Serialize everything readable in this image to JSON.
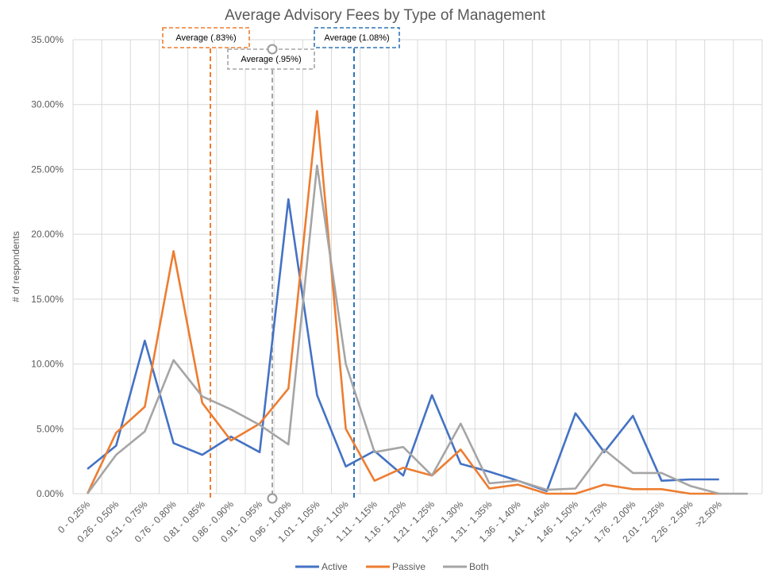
{
  "chart_data": {
    "type": "line",
    "title": "Average Advisory Fees by Type of Management",
    "xlabel": "",
    "ylabel": "# of respondents",
    "ylim": [
      0,
      35
    ],
    "yticks": [
      "0.00%",
      "5.00%",
      "10.00%",
      "15.00%",
      "20.00%",
      "25.00%",
      "30.00%",
      "35.00%"
    ],
    "grid": true,
    "legend": "bottom",
    "categories": [
      "0 - 0.25%",
      "0.26 - 0.50%",
      "0.51 - 0.75%",
      "0.76 - 0.80%",
      "0.81 - 0.85%",
      "0.86 - 0.90%",
      "0.91 - 0.95%",
      "0.96 - 1.00%",
      "1.01 - 1.05%",
      "1.06 - 1.10%",
      "1.11 - 1.15%",
      "1.16 - 1.20%",
      "1.21 - 1.25%",
      "1.26 - 1.30%",
      "1.31 - 1.35%",
      "1.36 - 1.40%",
      "1.41 - 1.45%",
      "1.46 - 1.50%",
      "1.51 - 1.75%",
      "1.76 - 2.00%",
      "2.01 - 2.25%",
      "2.26 - 2.50%",
      ">2.50%",
      ""
    ],
    "series": [
      {
        "name": "Active",
        "color": "#4472C4",
        "values": [
          1.9,
          3.7,
          11.8,
          3.9,
          3.0,
          4.4,
          3.2,
          22.7,
          7.6,
          2.1,
          3.3,
          1.4,
          7.6,
          2.3,
          1.7,
          1.0,
          0.2,
          6.2,
          3.2,
          6.0,
          1.0,
          1.1,
          1.1,
          null
        ]
      },
      {
        "name": "Passive",
        "color": "#ED7D31",
        "values": [
          0,
          4.7,
          6.7,
          18.7,
          7.0,
          4.1,
          5.4,
          8.1,
          29.5,
          5.0,
          1.0,
          2.0,
          1.4,
          3.4,
          0.4,
          0.7,
          0,
          0,
          0.7,
          0.35,
          0.35,
          0,
          0,
          null
        ]
      },
      {
        "name": "Both",
        "color": "#A5A5A5",
        "values": [
          0,
          3.0,
          4.8,
          10.3,
          7.5,
          6.5,
          5.3,
          3.8,
          25.3,
          10.0,
          3.2,
          3.6,
          1.4,
          5.4,
          0.8,
          1.0,
          0.3,
          0.4,
          3.4,
          1.6,
          1.6,
          0.6,
          0,
          0
        ]
      }
    ],
    "annotations": [
      {
        "label": "Average (.83%)",
        "color": "#ED7D31"
      },
      {
        "label": "Average (.95%)",
        "color": "#A5A5A5"
      },
      {
        "label": "Average (1.08%)",
        "color": "#2E75B6"
      }
    ]
  }
}
